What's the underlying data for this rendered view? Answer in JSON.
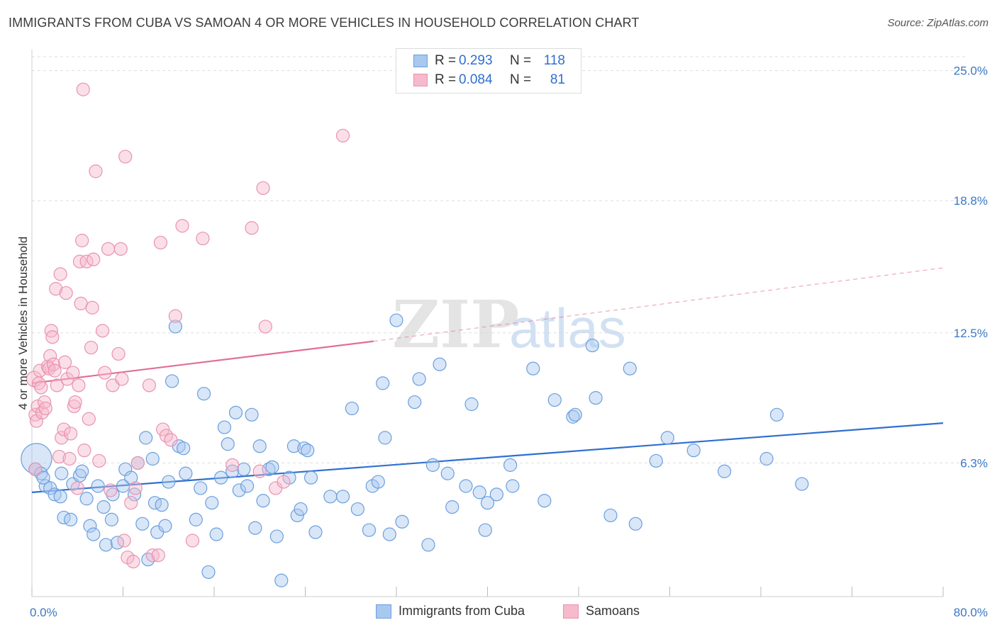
{
  "title": "IMMIGRANTS FROM CUBA VS SAMOAN 4 OR MORE VEHICLES IN HOUSEHOLD CORRELATION CHART",
  "source": "Source: ZipAtlas.com",
  "watermark": {
    "zip": "ZIP",
    "atlas": "atlas"
  },
  "legend": {
    "rows": [
      {
        "r_label": "R =",
        "r_value": "0.293",
        "n_label": "N =",
        "n_value": "118"
      },
      {
        "r_label": "R =",
        "r_value": "0.084",
        "n_label": "N =",
        "n_value": "81"
      }
    ]
  },
  "bottom_legend": {
    "cuba": "Immigrants from Cuba",
    "samoans": "Samoans"
  },
  "colors": {
    "cuba_fill": "#a9c8f0",
    "cuba_stroke": "#6a9fdd",
    "cuba_line": "#2f6fd1",
    "samoa_fill": "#f7b9cc",
    "samoa_stroke": "#e893ae",
    "samoa_line": "#e36d96",
    "tick_label": "#3a78c4",
    "grid": "#dddddd"
  },
  "chart_data": {
    "type": "scatter",
    "title": "IMMIGRANTS FROM CUBA VS SAMOAN 4 OR MORE VEHICLES IN HOUSEHOLD CORRELATION CHART",
    "xlabel": "",
    "ylabel": "4 or more Vehicles in Household",
    "xlim": [
      0,
      80
    ],
    "ylim": [
      0,
      26
    ],
    "x_tick_labels": [
      {
        "value": 0,
        "label": "0.0%"
      },
      {
        "value": 80,
        "label": "80.0%"
      }
    ],
    "y_tick_labels": [
      {
        "value": 6.3,
        "label": "6.3%"
      },
      {
        "value": 12.5,
        "label": "12.5%"
      },
      {
        "value": 18.8,
        "label": "18.8%"
      },
      {
        "value": 25.0,
        "label": "25.0%"
      }
    ],
    "grid": true,
    "legend_position": "top-center",
    "series": [
      {
        "name": "Immigrants from Cuba",
        "r": 0.293,
        "n": 118,
        "trend": {
          "x": [
            0,
            80
          ],
          "y": [
            4.9,
            8.2
          ],
          "style": "solid"
        },
        "points": [
          [
            0.4,
            6.5,
            2.4
          ],
          [
            0.3,
            6.0,
            1
          ],
          [
            0.8,
            5.8,
            1
          ],
          [
            1.2,
            5.2,
            1
          ],
          [
            1.6,
            5.1,
            1
          ],
          [
            2.0,
            4.8,
            1
          ],
          [
            1.0,
            5.6,
            1
          ],
          [
            2.5,
            4.7,
            1
          ],
          [
            2.8,
            3.7,
            1
          ],
          [
            3.4,
            3.6,
            1
          ],
          [
            3.6,
            5.3,
            1
          ],
          [
            4.2,
            5.7,
            1
          ],
          [
            2.6,
            5.8,
            1
          ],
          [
            4.4,
            5.9,
            1
          ],
          [
            4.8,
            4.6,
            1
          ],
          [
            5.1,
            3.3,
            1
          ],
          [
            5.4,
            2.9,
            1
          ],
          [
            5.8,
            5.2,
            1
          ],
          [
            6.3,
            4.2,
            1
          ],
          [
            6.5,
            2.4,
            1
          ],
          [
            7.0,
            3.6,
            1
          ],
          [
            7.1,
            4.8,
            1
          ],
          [
            7.5,
            2.5,
            1
          ],
          [
            8.0,
            5.2,
            1
          ],
          [
            8.2,
            6.0,
            1
          ],
          [
            8.7,
            5.6,
            1
          ],
          [
            9.0,
            4.8,
            1
          ],
          [
            9.3,
            6.3,
            1
          ],
          [
            9.7,
            3.4,
            1
          ],
          [
            10.0,
            7.5,
            1
          ],
          [
            10.2,
            1.7,
            1
          ],
          [
            10.6,
            6.5,
            1
          ],
          [
            10.8,
            4.4,
            1
          ],
          [
            11.0,
            3.0,
            1
          ],
          [
            11.4,
            4.3,
            1
          ],
          [
            11.7,
            3.3,
            1
          ],
          [
            12.0,
            5.4,
            1
          ],
          [
            12.3,
            10.2,
            1
          ],
          [
            12.6,
            12.8,
            1
          ],
          [
            12.9,
            7.1,
            1
          ],
          [
            13.3,
            7.0,
            1
          ],
          [
            13.5,
            5.8,
            1
          ],
          [
            14.4,
            3.6,
            1
          ],
          [
            14.8,
            5.1,
            1
          ],
          [
            15.1,
            9.6,
            1
          ],
          [
            15.5,
            1.1,
            1
          ],
          [
            15.8,
            4.4,
            1
          ],
          [
            16.2,
            2.9,
            1
          ],
          [
            16.6,
            5.6,
            1
          ],
          [
            16.9,
            8.0,
            1
          ],
          [
            17.2,
            7.2,
            1
          ],
          [
            17.6,
            5.9,
            1
          ],
          [
            17.9,
            8.7,
            1
          ],
          [
            18.2,
            5.0,
            1
          ],
          [
            18.6,
            6.0,
            1
          ],
          [
            18.9,
            5.2,
            1
          ],
          [
            19.3,
            8.6,
            1
          ],
          [
            19.6,
            3.2,
            1
          ],
          [
            20.0,
            7.1,
            1
          ],
          [
            20.3,
            4.5,
            1
          ],
          [
            20.8,
            6.0,
            1
          ],
          [
            21.1,
            6.1,
            1
          ],
          [
            21.5,
            2.8,
            1
          ],
          [
            21.9,
            0.7,
            1
          ],
          [
            22.6,
            5.6,
            1
          ],
          [
            23.0,
            7.1,
            1
          ],
          [
            23.3,
            3.8,
            1
          ],
          [
            23.6,
            4.1,
            1
          ],
          [
            23.9,
            7.0,
            1
          ],
          [
            24.2,
            6.9,
            1
          ],
          [
            24.5,
            5.6,
            1
          ],
          [
            24.9,
            3.0,
            1
          ],
          [
            26.2,
            4.7,
            1
          ],
          [
            27.3,
            4.7,
            1
          ],
          [
            28.1,
            8.9,
            1
          ],
          [
            28.6,
            4.1,
            1
          ],
          [
            29.6,
            3.1,
            1
          ],
          [
            29.9,
            5.2,
            1
          ],
          [
            30.4,
            5.4,
            1
          ],
          [
            31.0,
            7.5,
            1
          ],
          [
            30.8,
            10.1,
            1
          ],
          [
            31.4,
            2.9,
            1
          ],
          [
            32.0,
            13.1,
            1
          ],
          [
            32.5,
            3.5,
            1
          ],
          [
            33.6,
            9.2,
            1
          ],
          [
            34.0,
            10.3,
            1
          ],
          [
            34.8,
            2.4,
            1
          ],
          [
            35.2,
            6.2,
            1
          ],
          [
            35.8,
            11.0,
            1
          ],
          [
            36.5,
            5.8,
            1
          ],
          [
            36.9,
            4.2,
            1
          ],
          [
            38.1,
            5.2,
            1
          ],
          [
            38.6,
            9.1,
            1
          ],
          [
            39.3,
            4.9,
            1
          ],
          [
            39.8,
            3.1,
            1
          ],
          [
            40.0,
            4.4,
            1
          ],
          [
            40.8,
            4.8,
            1
          ],
          [
            42.2,
            5.2,
            1
          ],
          [
            42.0,
            6.2,
            1
          ],
          [
            44.0,
            10.8,
            1
          ],
          [
            45.0,
            4.5,
            1
          ],
          [
            45.9,
            9.3,
            1
          ],
          [
            47.5,
            8.5,
            1
          ],
          [
            47.7,
            8.6,
            1
          ],
          [
            49.2,
            11.9,
            1
          ],
          [
            49.5,
            9.4,
            1
          ],
          [
            50.8,
            3.8,
            1
          ],
          [
            52.5,
            10.8,
            1
          ],
          [
            53.0,
            3.4,
            1
          ],
          [
            54.8,
            6.4,
            1
          ],
          [
            55.8,
            7.5,
            1
          ],
          [
            58.1,
            6.9,
            1
          ],
          [
            60.8,
            5.9,
            1
          ],
          [
            64.5,
            6.5,
            1
          ],
          [
            65.4,
            8.6,
            1
          ],
          [
            67.6,
            5.3,
            1
          ]
        ]
      },
      {
        "name": "Samoans",
        "r": 0.084,
        "n": 81,
        "trend": {
          "x": [
            0,
            30
          ],
          "y": [
            10.1,
            12.1
          ],
          "style": "solid",
          "dashed_extension": {
            "x": [
              30,
              80
            ],
            "y": [
              12.1,
              15.6
            ]
          }
        },
        "points": [
          [
            0.2,
            10.3,
            1.2
          ],
          [
            0.3,
            8.6,
            1
          ],
          [
            0.3,
            6.0,
            1
          ],
          [
            0.4,
            8.3,
            1
          ],
          [
            0.5,
            9.0,
            1
          ],
          [
            0.6,
            10.1,
            1
          ],
          [
            0.7,
            10.7,
            1
          ],
          [
            0.8,
            9.9,
            1
          ],
          [
            0.9,
            8.7,
            1
          ],
          [
            1.1,
            9.2,
            1
          ],
          [
            1.2,
            8.9,
            1
          ],
          [
            1.4,
            10.9,
            1
          ],
          [
            1.5,
            10.8,
            1
          ],
          [
            1.6,
            11.4,
            1
          ],
          [
            1.7,
            12.6,
            1
          ],
          [
            1.8,
            12.3,
            1
          ],
          [
            1.9,
            11.0,
            1
          ],
          [
            2.0,
            10.7,
            1
          ],
          [
            2.1,
            14.6,
            1
          ],
          [
            2.2,
            10.0,
            1
          ],
          [
            2.4,
            6.6,
            1
          ],
          [
            2.5,
            15.3,
            1
          ],
          [
            2.6,
            7.5,
            1
          ],
          [
            2.8,
            7.9,
            1
          ],
          [
            2.9,
            11.1,
            1
          ],
          [
            3.0,
            14.4,
            1
          ],
          [
            3.1,
            10.3,
            1
          ],
          [
            3.3,
            6.5,
            1
          ],
          [
            3.4,
            7.7,
            1
          ],
          [
            3.6,
            10.6,
            1
          ],
          [
            3.7,
            9.0,
            1
          ],
          [
            3.8,
            9.2,
            1
          ],
          [
            4.0,
            5.1,
            1
          ],
          [
            4.1,
            10.0,
            1
          ],
          [
            4.2,
            15.9,
            1
          ],
          [
            4.3,
            13.9,
            1
          ],
          [
            4.4,
            16.9,
            1
          ],
          [
            4.6,
            6.9,
            1
          ],
          [
            4.8,
            15.9,
            1
          ],
          [
            5.0,
            8.4,
            1
          ],
          [
            5.2,
            11.8,
            1
          ],
          [
            5.3,
            13.7,
            1
          ],
          [
            5.4,
            16.0,
            1
          ],
          [
            5.6,
            20.2,
            1
          ],
          [
            5.9,
            6.4,
            1
          ],
          [
            6.2,
            12.6,
            1
          ],
          [
            6.4,
            10.6,
            1
          ],
          [
            6.7,
            16.5,
            1
          ],
          [
            6.9,
            5.0,
            1
          ],
          [
            7.1,
            10.0,
            1
          ],
          [
            7.6,
            11.5,
            1
          ],
          [
            7.8,
            16.5,
            1
          ],
          [
            7.9,
            10.3,
            1
          ],
          [
            8.1,
            2.6,
            1
          ],
          [
            8.2,
            20.9,
            1
          ],
          [
            8.4,
            1.8,
            1
          ],
          [
            8.7,
            4.4,
            1
          ],
          [
            8.9,
            1.6,
            1
          ],
          [
            9.1,
            5.1,
            1
          ],
          [
            9.3,
            6.3,
            1
          ],
          [
            10.3,
            10.0,
            1
          ],
          [
            10.6,
            1.9,
            1
          ],
          [
            11.1,
            1.9,
            1
          ],
          [
            11.3,
            16.8,
            1
          ],
          [
            11.5,
            7.9,
            1
          ],
          [
            11.8,
            7.6,
            1
          ],
          [
            12.2,
            7.4,
            1
          ],
          [
            12.6,
            13.3,
            1
          ],
          [
            13.2,
            17.6,
            1
          ],
          [
            14.1,
            2.6,
            1
          ],
          [
            15.0,
            17.0,
            1
          ],
          [
            17.6,
            6.2,
            1
          ],
          [
            19.3,
            17.5,
            1
          ],
          [
            20.0,
            5.9,
            1
          ],
          [
            20.3,
            19.4,
            1
          ],
          [
            20.5,
            12.8,
            1
          ],
          [
            21.4,
            5.1,
            1
          ],
          [
            22.1,
            5.4,
            1
          ],
          [
            27.3,
            21.9,
            1
          ],
          [
            4.5,
            24.1,
            1
          ]
        ]
      }
    ]
  }
}
